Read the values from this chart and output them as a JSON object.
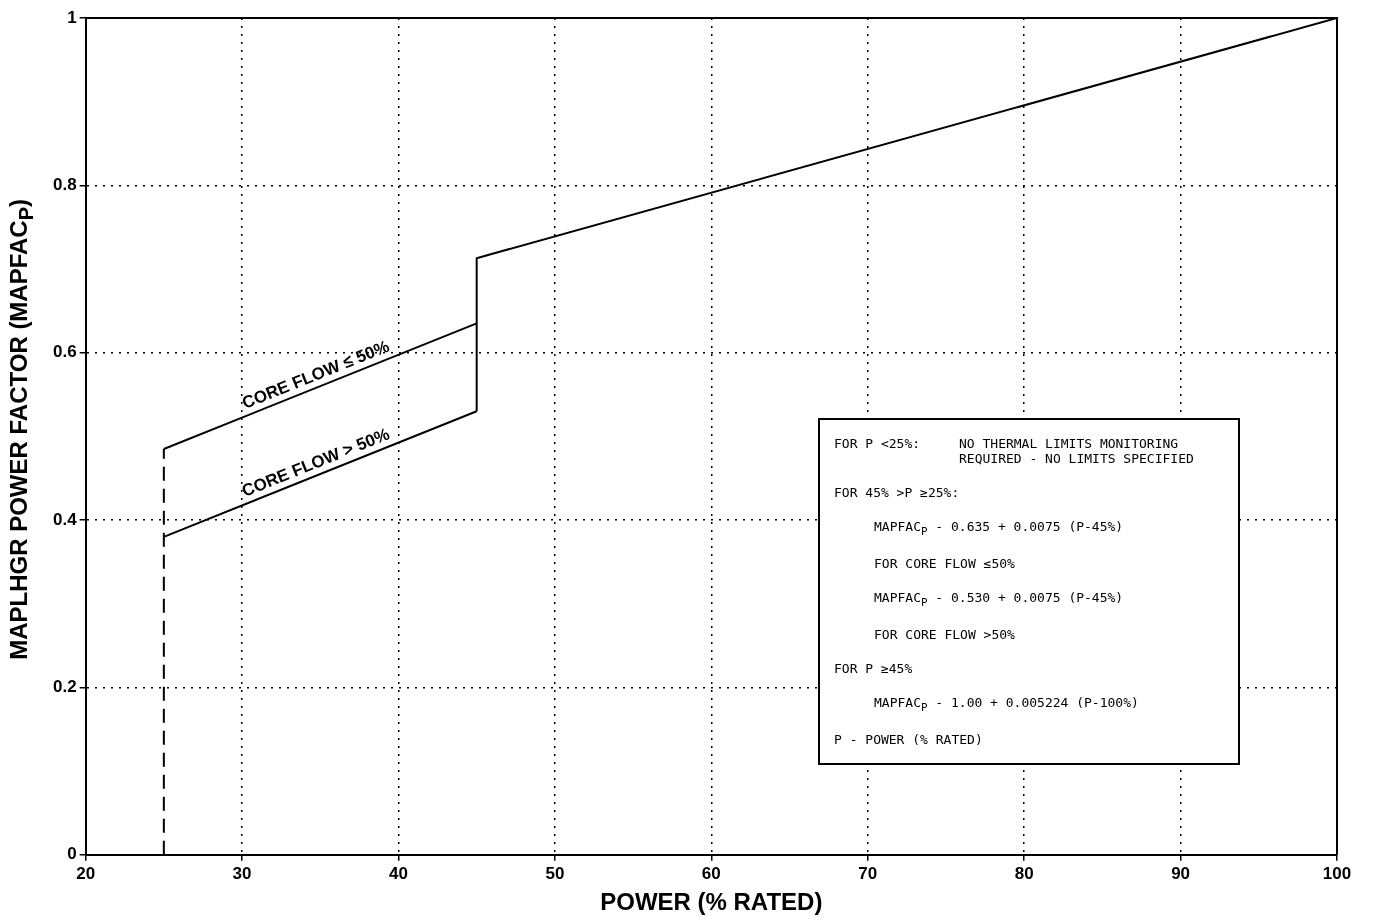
{
  "chart_data": {
    "type": "line",
    "xlabel": "POWER (% RATED)",
    "ylabel": "MAPLHGR POWER FACTOR (MAPFAC$_{P}$)",
    "xlim": [
      20,
      100
    ],
    "xticks": [
      20,
      30,
      40,
      50,
      60,
      70,
      80,
      90,
      100
    ],
    "ylim": [
      0,
      1
    ],
    "yticks": [
      0,
      0.2,
      0.4,
      0.6,
      0.8,
      1
    ],
    "grid": true,
    "legend": false,
    "marker": "none",
    "series": [
      {
        "name": "CORE FLOW ≤ 50%",
        "color": "#000000",
        "x": [
          25,
          45
        ],
        "values": [
          0.485,
          0.635
        ],
        "line_style": "solid"
      },
      {
        "name": "CORE FLOW > 50%",
        "color": "#000000",
        "x": [
          25,
          45
        ],
        "values": [
          0.38,
          0.53
        ],
        "line_style": "solid"
      },
      {
        "color": "#000000",
        "x": [
          45,
          45,
          100
        ],
        "values": [
          0.53,
          0.713,
          1
        ],
        "line_style": "solid"
      },
      {
        "color": "#000000",
        "x": [
          25,
          25
        ],
        "values": [
          0,
          0.485
        ],
        "line_style": "dashed"
      }
    ],
    "annotations": [
      "FOR P <25%:",
      "NO THERMAL LIMITS MONITORING",
      "REQUIRED - NO LIMITS SPECIFIED",
      "FOR 45% >P ≥25%:",
      "MAPFAC$_{P}$ - 0.635 + 0.0075 (P-45%)",
      "FOR CORE FLOW ≤50%",
      "MAPFAC$_{P}$ - 0.530 + 0.0075 (P-45%)",
      "FOR CORE FLOW >50%",
      "FOR P ≥45%",
      "MAPFAC$_{P}$ - 1.00 + 0.005224 (P-100%)",
      "P - POWER (% RATED)"
    ]
  }
}
